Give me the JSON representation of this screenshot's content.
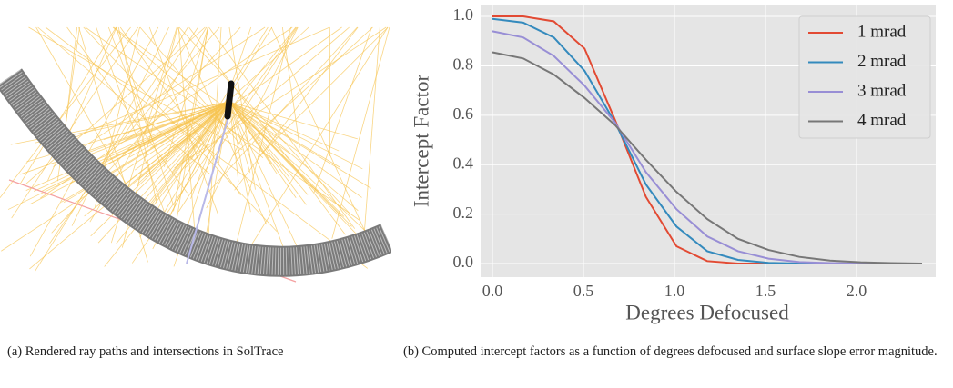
{
  "chart_data": {
    "type": "line",
    "xlabel": "Degrees Defocused",
    "ylabel": "Intercept Factor",
    "x": [
      0,
      0.169,
      0.337,
      0.506,
      0.674,
      0.843,
      1.011,
      1.18,
      1.349,
      1.517,
      1.686,
      1.854,
      2.023,
      2.191,
      2.36
    ],
    "series": [
      {
        "name": "1 mrad",
        "color": "#e24a33",
        "values": [
          1.0,
          1.0,
          0.98,
          0.87,
          0.58,
          0.27,
          0.07,
          0.01,
          0.0,
          0.0,
          0.0,
          0.0,
          0.0,
          0.0,
          0.0
        ]
      },
      {
        "name": "2 mrad",
        "color": "#348abd",
        "values": [
          0.99,
          0.975,
          0.915,
          0.78,
          0.57,
          0.32,
          0.15,
          0.05,
          0.015,
          0.003,
          0.0,
          0.0,
          0.0,
          0.0,
          0.0
        ]
      },
      {
        "name": "3 mrad",
        "color": "#988ed5",
        "values": [
          0.94,
          0.915,
          0.84,
          0.72,
          0.57,
          0.37,
          0.22,
          0.11,
          0.05,
          0.02,
          0.006,
          0.002,
          0.0,
          0.0,
          0.0
        ]
      },
      {
        "name": "4 mrad",
        "color": "#777777",
        "values": [
          0.855,
          0.83,
          0.765,
          0.67,
          0.56,
          0.42,
          0.29,
          0.18,
          0.1,
          0.055,
          0.027,
          0.012,
          0.005,
          0.002,
          0.0
        ]
      }
    ],
    "xlim": [
      -0.065,
      2.435
    ],
    "ylim": [
      -0.055,
      1.048
    ],
    "xticks": [
      {
        "value": 0,
        "label": "0.0"
      },
      0.5,
      {
        "value": 1,
        "label": "1.0"
      },
      1.5,
      {
        "value": 2,
        "label": "2.0"
      }
    ],
    "yticks": [
      {
        "value": 0,
        "label": "0.0"
      },
      0.2,
      0.4,
      0.6,
      0.8,
      {
        "value": 1,
        "label": "1.0"
      }
    ],
    "grid": true,
    "legend": "upper right"
  },
  "captions": [
    "(a) Rendered ray paths and intersections in SolTrace",
    "(b) Computed intercept factors as a function of degrees defocused and surface slope error magnitude."
  ]
}
